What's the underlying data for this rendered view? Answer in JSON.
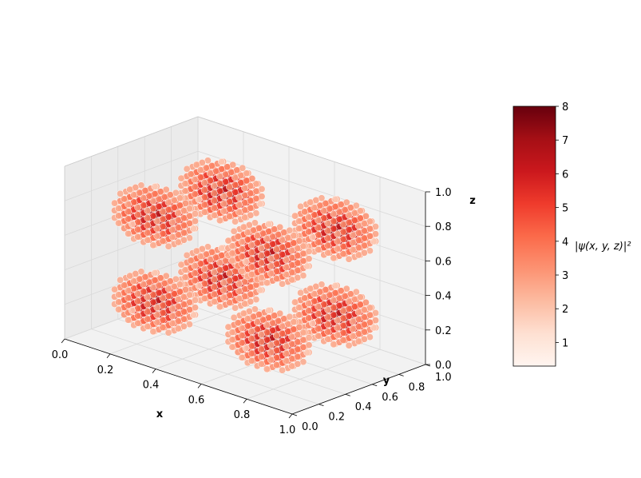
{
  "chart_data": {
    "type": "scatter3d",
    "title": "",
    "xlabel": "x",
    "ylabel": "y",
    "zlabel": "z",
    "xlim": [
      0.0,
      1.0
    ],
    "ylim": [
      0.0,
      1.0
    ],
    "zlim": [
      0.0,
      1.0
    ],
    "x_ticks": [
      "0.0",
      "0.2",
      "0.4",
      "0.6",
      "0.8",
      "1.0"
    ],
    "y_ticks": [
      "0.0",
      "0.2",
      "0.4",
      "0.6",
      "0.8",
      "1.0"
    ],
    "z_ticks": [
      "0.0",
      "0.2",
      "0.4",
      "0.6",
      "0.8",
      "1.0"
    ],
    "grid": true,
    "colormap": "Reds",
    "colorbar": {
      "label": "|ψ(x, y, z)|²",
      "ticks": [
        "1",
        "2",
        "3",
        "4",
        "5",
        "6",
        "7",
        "8"
      ],
      "range": [
        0.3,
        8.0
      ]
    },
    "clusters": [
      {
        "center": [
          0.25,
          0.25,
          0.25
        ],
        "peak": 8.0
      },
      {
        "center": [
          0.75,
          0.25,
          0.25
        ],
        "peak": 8.0
      },
      {
        "center": [
          0.25,
          0.75,
          0.25
        ],
        "peak": 8.0
      },
      {
        "center": [
          0.75,
          0.75,
          0.25
        ],
        "peak": 8.0
      },
      {
        "center": [
          0.25,
          0.25,
          0.75
        ],
        "peak": 8.0
      },
      {
        "center": [
          0.75,
          0.25,
          0.75
        ],
        "peak": 8.0
      },
      {
        "center": [
          0.25,
          0.75,
          0.75
        ],
        "peak": 8.0
      },
      {
        "center": [
          0.75,
          0.75,
          0.75
        ],
        "peak": 8.0
      }
    ],
    "colors": {
      "pane": "#f2f2f2",
      "grid": "#d9d9d9",
      "low": "#fff5f0",
      "high": "#67000d"
    }
  }
}
